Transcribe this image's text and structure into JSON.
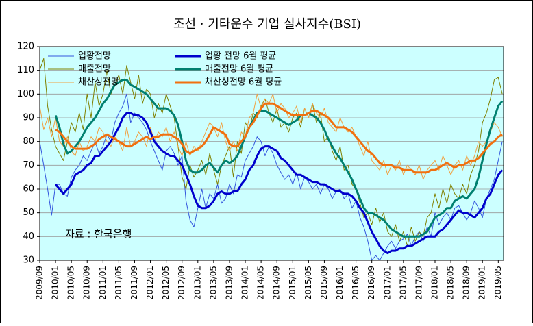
{
  "chart_data": {
    "type": "line",
    "title": "조선 · 기타운수 기업 실사지수(BSI)",
    "annotation": "자료 : 한국은행",
    "ylim": [
      30,
      120
    ],
    "yticks": [
      30,
      40,
      50,
      60,
      70,
      80,
      90,
      100,
      110,
      120
    ],
    "grid": true,
    "background": "#ccffff",
    "categories": [
      "2009/09",
      null,
      null,
      null,
      "2010/01",
      null,
      null,
      null,
      "2010/05",
      null,
      null,
      null,
      "2010/09",
      null,
      null,
      null,
      "2011/01",
      null,
      null,
      null,
      "2011/05",
      null,
      null,
      null,
      "2011/09",
      null,
      null,
      null,
      "2012/01",
      null,
      null,
      null,
      "2012/05",
      null,
      null,
      null,
      "2012/09",
      null,
      null,
      null,
      "2013/01",
      null,
      null,
      null,
      "2013/05",
      null,
      null,
      null,
      "2013/09",
      null,
      null,
      null,
      "2014/01",
      null,
      null,
      null,
      "2014/05",
      null,
      null,
      null,
      "2014/09",
      null,
      null,
      null,
      "2015/01",
      null,
      null,
      null,
      "2015/05",
      null,
      null,
      null,
      "2015/09",
      null,
      null,
      null,
      "2016/01",
      null,
      null,
      null,
      "2016/05",
      null,
      null,
      null,
      "2016/09",
      null,
      null,
      null,
      "2017/01",
      null,
      null,
      null,
      "2017/05",
      null,
      null,
      null,
      "2017/09",
      null,
      null,
      null,
      "2018/01",
      null,
      null,
      null,
      "2018/05",
      null,
      null,
      null,
      "2018/09",
      null,
      null,
      null,
      "2019/01",
      null,
      null,
      null,
      "2019/05",
      null
    ],
    "series": [
      {
        "name": "업황전망",
        "color": "#3355dd",
        "line_width": 1,
        "values": [
          80,
          70,
          60,
          49,
          62,
          62,
          58,
          57,
          65,
          68,
          70,
          74,
          72,
          76,
          80,
          75,
          78,
          83,
          80,
          88,
          92,
          95,
          100,
          88,
          92,
          90,
          88,
          85,
          80,
          76,
          72,
          68,
          76,
          78,
          75,
          70,
          74,
          55,
          47,
          44,
          52,
          60,
          52,
          58,
          56,
          62,
          54,
          56,
          62,
          58,
          66,
          65,
          72,
          75,
          78,
          82,
          80,
          74,
          78,
          75,
          70,
          67,
          64,
          66,
          62,
          67,
          60,
          65,
          63,
          60,
          62,
          58,
          62,
          60,
          56,
          59,
          60,
          56,
          58,
          52,
          55,
          48,
          44,
          38,
          30,
          32,
          30,
          33,
          36,
          38,
          35,
          38,
          39,
          41,
          36,
          40,
          42,
          38,
          44,
          40,
          50,
          45,
          48,
          50,
          47,
          52,
          53,
          50,
          47,
          50,
          55,
          52,
          48,
          56,
          60,
          64,
          72,
          80
        ]
      },
      {
        "name": "매출전망",
        "color": "#808000",
        "line_width": 1,
        "values": [
          110,
          115,
          95,
          85,
          78,
          75,
          72,
          80,
          88,
          84,
          92,
          85,
          100,
          90,
          105,
          95,
          100,
          110,
          100,
          104,
          108,
          100,
          112,
          105,
          98,
          108,
          96,
          102,
          100,
          90,
          96,
          92,
          100,
          95,
          90,
          78,
          65,
          60,
          70,
          65,
          68,
          72,
          66,
          75,
          68,
          62,
          70,
          74,
          78,
          65,
          80,
          75,
          88,
          85,
          92,
          90,
          95,
          98,
          92,
          88,
          94,
          86,
          88,
          84,
          90,
          92,
          86,
          94,
          90,
          96,
          88,
          92,
          80,
          82,
          76,
          72,
          78,
          68,
          70,
          62,
          60,
          54,
          48,
          50,
          45,
          52,
          46,
          50,
          42,
          40,
          45,
          38,
          42,
          36,
          44,
          38,
          42,
          40,
          48,
          50,
          58,
          52,
          60,
          54,
          62,
          58,
          56,
          62,
          58,
          66,
          70,
          76,
          88,
          92,
          98,
          106,
          107,
          100
        ]
      },
      {
        "name": "채산성전망",
        "color": "#f0a040",
        "line_width": 1,
        "values": [
          95,
          85,
          90,
          82,
          90,
          80,
          78,
          82,
          76,
          74,
          80,
          76,
          78,
          82,
          80,
          86,
          84,
          80,
          78,
          82,
          80,
          76,
          86,
          78,
          80,
          84,
          82,
          78,
          86,
          80,
          84,
          82,
          86,
          80,
          84,
          78,
          74,
          80,
          74,
          78,
          76,
          80,
          84,
          88,
          86,
          82,
          88,
          80,
          76,
          80,
          76,
          84,
          82,
          90,
          92,
          100,
          94,
          98,
          96,
          100,
          92,
          96,
          94,
          90,
          92,
          95,
          88,
          94,
          90,
          96,
          92,
          90,
          94,
          88,
          86,
          84,
          90,
          86,
          84,
          86,
          82,
          78,
          74,
          80,
          72,
          70,
          68,
          72,
          66,
          70,
          68,
          72,
          66,
          70,
          68,
          66,
          70,
          64,
          68,
          70,
          72,
          68,
          74,
          70,
          66,
          70,
          72,
          68,
          74,
          70,
          74,
          80,
          78,
          80,
          84,
          88,
          86,
          82
        ]
      },
      {
        "name": "업황 전망 6월 평균",
        "color": "#0000cc",
        "line_width": 3,
        "values": [
          null,
          null,
          null,
          null,
          62,
          60,
          58,
          60,
          62,
          66,
          67,
          68,
          70,
          71,
          74,
          74,
          76,
          78,
          80,
          83,
          86,
          90,
          92,
          92,
          91,
          91,
          90,
          88,
          84,
          80,
          78,
          76,
          75,
          74,
          74,
          72,
          70,
          66,
          62,
          57,
          53,
          52,
          52,
          53,
          55,
          58,
          59,
          58,
          58,
          59,
          59,
          62,
          64,
          68,
          70,
          74,
          77,
          78,
          78,
          77,
          76,
          73,
          72,
          70,
          68,
          66,
          66,
          65,
          64,
          63,
          63,
          62,
          62,
          61,
          60,
          59,
          59,
          58,
          58,
          57,
          55,
          52,
          50,
          46,
          42,
          39,
          36,
          34,
          33,
          34,
          34,
          35,
          35,
          36,
          36,
          37,
          38,
          39,
          40,
          40,
          40,
          42,
          43,
          45,
          47,
          49,
          51,
          50,
          50,
          49,
          48,
          50,
          52,
          56,
          58,
          62,
          66,
          68
        ]
      },
      {
        "name": "매출전망 6월 평균",
        "color": "#008070",
        "line_width": 3,
        "values": [
          null,
          null,
          null,
          null,
          91,
          86,
          79,
          75,
          76,
          78,
          80,
          83,
          86,
          88,
          90,
          93,
          96,
          98,
          101,
          104,
          105,
          106,
          106,
          104,
          103,
          102,
          101,
          100,
          98,
          96,
          94,
          94,
          94,
          93,
          91,
          87,
          80,
          72,
          68,
          67,
          67,
          68,
          70,
          71,
          69,
          67,
          70,
          72,
          71,
          72,
          74,
          78,
          82,
          86,
          89,
          92,
          93,
          93,
          92,
          91,
          90,
          89,
          88,
          87,
          88,
          89,
          91,
          91,
          92,
          91,
          90,
          88,
          85,
          81,
          78,
          75,
          73,
          70,
          67,
          64,
          60,
          56,
          52,
          50,
          50,
          49,
          48,
          47,
          45,
          43,
          42,
          41,
          40,
          40,
          40,
          40,
          40,
          41,
          42,
          45,
          48,
          49,
          50,
          52,
          52,
          55,
          56,
          57,
          56,
          58,
          60,
          65,
          72,
          79,
          85,
          90,
          95,
          97
        ]
      },
      {
        "name": "채산성전망 6월 평균",
        "color": "#f07010",
        "line_width": 3,
        "values": [
          null,
          null,
          null,
          null,
          85,
          84,
          82,
          80,
          78,
          77,
          77,
          77,
          77,
          78,
          79,
          81,
          82,
          83,
          82,
          81,
          80,
          79,
          78,
          78,
          79,
          80,
          81,
          82,
          81,
          82,
          82,
          83,
          83,
          83,
          82,
          81,
          79,
          76,
          75,
          76,
          77,
          78,
          80,
          83,
          86,
          85,
          84,
          83,
          79,
          78,
          78,
          80,
          82,
          86,
          88,
          91,
          94,
          96,
          96,
          96,
          95,
          94,
          93,
          92,
          91,
          91,
          91,
          91,
          92,
          93,
          93,
          92,
          91,
          90,
          88,
          86,
          86,
          86,
          85,
          84,
          82,
          80,
          78,
          76,
          75,
          73,
          71,
          70,
          70,
          70,
          69,
          69,
          68,
          68,
          68,
          67,
          67,
          67,
          67,
          68,
          68,
          69,
          70,
          71,
          70,
          69,
          70,
          70,
          71,
          72,
          72,
          73,
          75,
          77,
          79,
          80,
          82,
          83
        ]
      }
    ]
  }
}
